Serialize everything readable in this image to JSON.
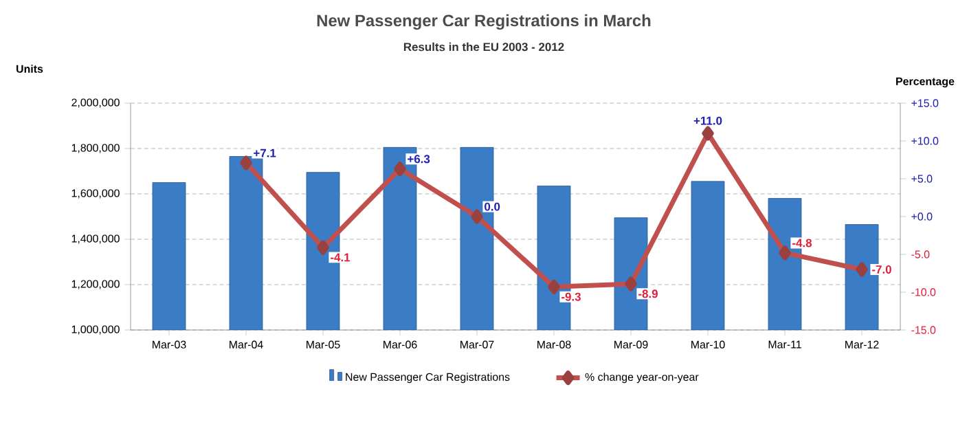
{
  "chart_data": {
    "type": "bar",
    "title": "New Passenger Car Registrations in March",
    "subtitle": "Results in the EU 2003 - 2012",
    "ylabel": "Units",
    "y2label": "Percentage",
    "categories": [
      "Mar-03",
      "Mar-04",
      "Mar-05",
      "Mar-06",
      "Mar-07",
      "Mar-08",
      "Mar-09",
      "Mar-10",
      "Mar-11",
      "Mar-12"
    ],
    "series": [
      {
        "name": "New Passenger Car Registrations",
        "color": "#3a7cc6",
        "values": [
          1650000,
          1765000,
          1695000,
          1805000,
          1805000,
          1635000,
          1495000,
          1655000,
          1580000,
          1465000
        ]
      },
      {
        "name": "% change year-on-year",
        "type": "line",
        "axis": "y2",
        "color": "#c0504d",
        "marker": "diamond",
        "values": [
          null,
          7.1,
          -4.1,
          6.3,
          0.0,
          -9.3,
          -8.9,
          11.0,
          -4.8,
          -7.0
        ],
        "value_labels": [
          null,
          "+7.1",
          "-4.1",
          "+6.3",
          "0.0",
          "-9.3",
          "-8.9",
          "+11.0",
          "-4.8",
          "-7.0"
        ]
      }
    ],
    "ylim": [
      1000000,
      2000000
    ],
    "yticks": [
      {
        "value": 1000000,
        "label": "1,000,000"
      },
      {
        "value": 1200000,
        "label": "1,200,000"
      },
      {
        "value": 1400000,
        "label": "1,400,000"
      },
      {
        "value": 1600000,
        "label": "1,600,000"
      },
      {
        "value": 1800000,
        "label": "1,800,000"
      },
      {
        "value": 2000000,
        "label": "2,000,000"
      }
    ],
    "y2lim": [
      -15,
      15
    ],
    "y2ticks": [
      {
        "value": -15,
        "label": "-15.0"
      },
      {
        "value": -10,
        "label": "-10.0"
      },
      {
        "value": -5,
        "label": "-5.0"
      },
      {
        "value": 0,
        "label": "+0.0"
      },
      {
        "value": 5,
        "label": "+5.0"
      },
      {
        "value": 10,
        "label": "+10.0"
      },
      {
        "value": 15,
        "label": "+15.0"
      }
    ],
    "grid": "y",
    "legend": "bottom"
  }
}
